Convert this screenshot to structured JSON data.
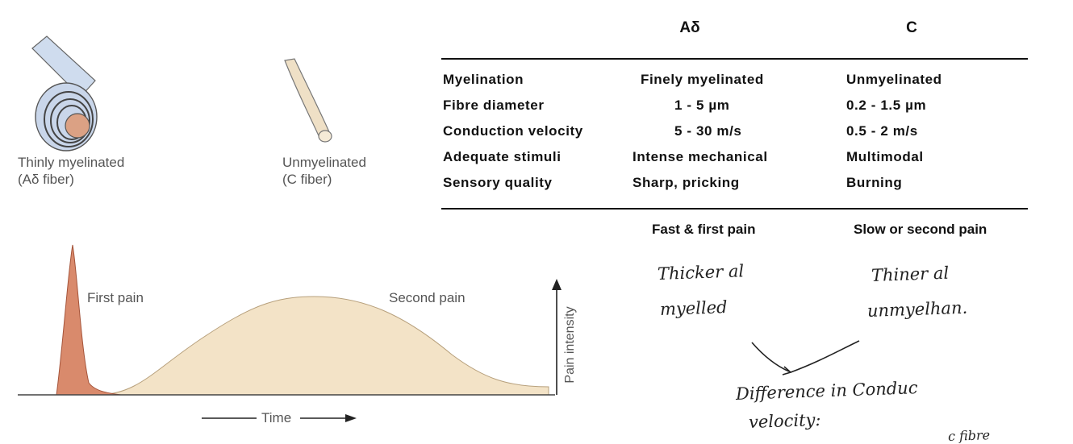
{
  "fibers": [
    {
      "name": "Thinly myelinated",
      "type": "(Aδ fiber)",
      "icon": "myelinated-fiber-icon"
    },
    {
      "name": "Unmyelinated",
      "type": "(C fiber)",
      "icon": "unmyelinated-fiber-icon"
    }
  ],
  "table": {
    "headers": [
      "Aδ",
      "C"
    ],
    "rows": [
      {
        "label": "Myelination",
        "ad": "Finely myelinated",
        "c": "Unmyelinated"
      },
      {
        "label": "Fibre diameter",
        "ad": "1 - 5 µm",
        "c": "0.2 - 1.5 µm"
      },
      {
        "label": "Conduction velocity",
        "ad": "5 - 30 m/s",
        "c": "0.5 - 2 m/s"
      },
      {
        "label": "Adequate stimuli",
        "ad": "Intense mechanical",
        "c": "Multimodal"
      },
      {
        "label": "Sensory quality",
        "ad": "Sharp, pricking",
        "c": "Burning"
      }
    ],
    "footers": [
      "Fast & first pain",
      "Slow or second pain"
    ]
  },
  "pain_graph": {
    "first_label": "First pain",
    "second_label": "Second pain",
    "y_axis_label": "Pain intensity",
    "x_axis_label": "Time",
    "colors": {
      "first": "#d98a6c",
      "second": "#f3e3c7"
    }
  },
  "notes": {
    "ad_note": [
      "Thicker al",
      "myelled"
    ],
    "c_note": [
      "Thiner al",
      "unmyelhan."
    ],
    "difference": [
      "Difference in Conduc",
      "velocity:"
    ],
    "bottom_scrawl": "c fibre"
  }
}
